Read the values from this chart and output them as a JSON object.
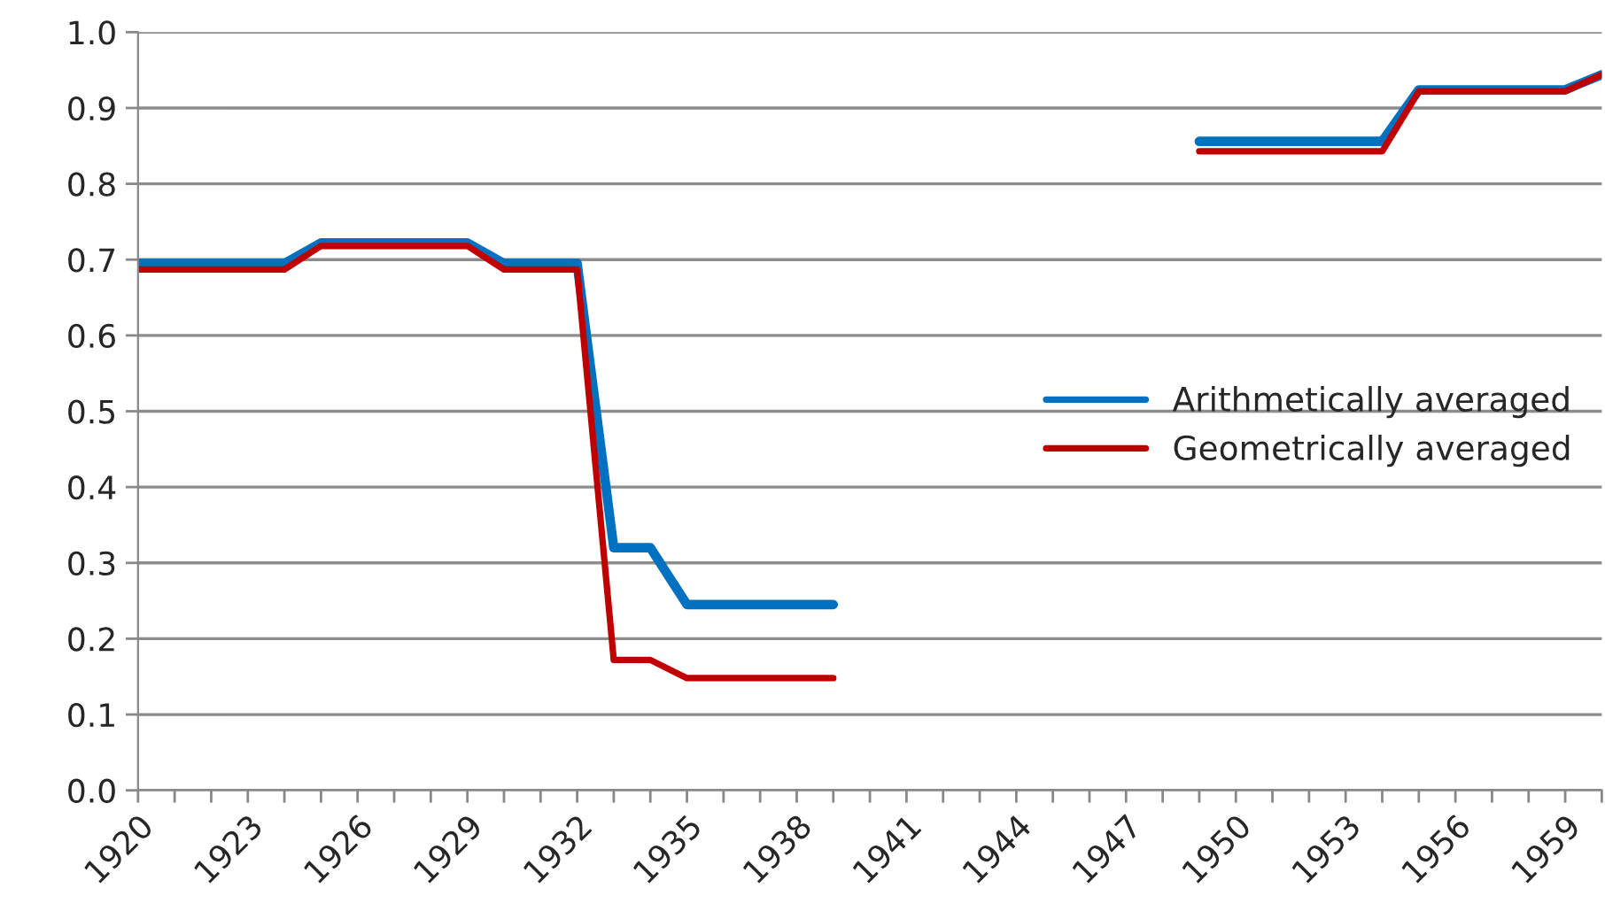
{
  "chart_data": {
    "type": "line",
    "x": [
      1920,
      1921,
      1922,
      1923,
      1924,
      1925,
      1926,
      1927,
      1928,
      1929,
      1930,
      1931,
      1932,
      1933,
      1934,
      1935,
      1936,
      1937,
      1938,
      1939,
      1940,
      1941,
      1942,
      1943,
      1944,
      1945,
      1946,
      1947,
      1948,
      1949,
      1950,
      1951,
      1952,
      1953,
      1954,
      1955,
      1956,
      1957,
      1958,
      1959,
      1960
    ],
    "series": [
      {
        "name": "Arithmetically averaged",
        "color": "#0070c0",
        "values": [
          0.695,
          0.695,
          0.695,
          0.695,
          0.695,
          0.722,
          0.722,
          0.722,
          0.722,
          0.722,
          0.695,
          0.695,
          0.695,
          0.32,
          0.32,
          0.245,
          0.245,
          0.245,
          0.245,
          0.245,
          null,
          null,
          null,
          null,
          null,
          null,
          null,
          null,
          null,
          0.856,
          0.856,
          0.856,
          0.856,
          0.856,
          0.856,
          0.924,
          0.924,
          0.924,
          0.924,
          0.924,
          0.944
        ]
      },
      {
        "name": "Geometrically averaged",
        "color": "#c00000",
        "values": [
          0.687,
          0.687,
          0.687,
          0.687,
          0.687,
          0.718,
          0.718,
          0.718,
          0.718,
          0.718,
          0.687,
          0.687,
          0.687,
          0.172,
          0.172,
          0.148,
          0.148,
          0.148,
          0.148,
          0.148,
          null,
          null,
          null,
          null,
          null,
          null,
          null,
          null,
          null,
          0.843,
          0.843,
          0.843,
          0.843,
          0.843,
          0.843,
          0.922,
          0.922,
          0.922,
          0.922,
          0.922,
          0.944
        ]
      }
    ],
    "xlim": [
      1920,
      1960
    ],
    "xticks": [
      1920,
      {
        "value": 1921,
        "label": null
      },
      {
        "value": 1922,
        "label": null
      },
      1923,
      {
        "value": 1924,
        "label": null
      },
      {
        "value": 1925,
        "label": null
      },
      1926,
      {
        "value": 1927,
        "label": null
      },
      {
        "value": 1928,
        "label": null
      },
      1929,
      {
        "value": 1930,
        "label": null
      },
      {
        "value": 1931,
        "label": null
      },
      1932,
      {
        "value": 1933,
        "label": null
      },
      {
        "value": 1934,
        "label": null
      },
      1935,
      {
        "value": 1936,
        "label": null
      },
      {
        "value": 1937,
        "label": null
      },
      1938,
      {
        "value": 1939,
        "label": null
      },
      {
        "value": 1940,
        "label": null
      },
      1941,
      {
        "value": 1942,
        "label": null
      },
      {
        "value": 1943,
        "label": null
      },
      1944,
      {
        "value": 1945,
        "label": null
      },
      {
        "value": 1946,
        "label": null
      },
      1947,
      {
        "value": 1948,
        "label": null
      },
      {
        "value": 1949,
        "label": null
      },
      1950,
      {
        "value": 1951,
        "label": null
      },
      {
        "value": 1952,
        "label": null
      },
      1953,
      {
        "value": 1954,
        "label": null
      },
      {
        "value": 1955,
        "label": null
      },
      1956,
      {
        "value": 1957,
        "label": null
      },
      {
        "value": 1958,
        "label": null
      },
      1959,
      {
        "value": 1960,
        "label": null
      }
    ],
    "ylim": [
      0,
      1
    ],
    "yticks": [
      {
        "value": 0,
        "label": "0.0"
      },
      {
        "value": 0.1,
        "label": "0.1"
      },
      {
        "value": 0.2,
        "label": "0.2"
      },
      {
        "value": 0.3,
        "label": "0.3"
      },
      {
        "value": 0.4,
        "label": "0.4"
      },
      {
        "value": 0.5,
        "label": "0.5"
      },
      {
        "value": 0.6,
        "label": "0.6"
      },
      {
        "value": 0.7,
        "label": "0.7"
      },
      {
        "value": 0.8,
        "label": "0.8"
      },
      {
        "value": 0.9,
        "label": "0.9"
      },
      {
        "value": 1,
        "label": "1.0"
      }
    ],
    "grid": "y",
    "legend": "right",
    "marker": "none",
    "line_style": "solid"
  }
}
